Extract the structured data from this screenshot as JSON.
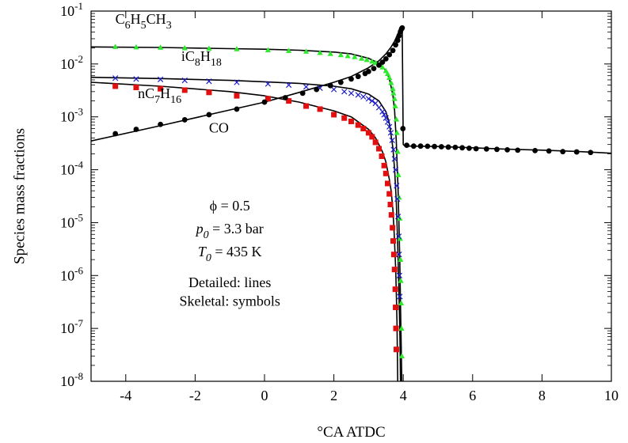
{
  "chart_data": {
    "type": "scatter",
    "xlabel": "°CA ATDC",
    "ylabel": "Species mass fractions",
    "xlim": [
      -5,
      10
    ],
    "ylim": [
      1e-08,
      0.1
    ],
    "y_scale": "log",
    "x_ticks": [
      -4,
      -2,
      0,
      2,
      4,
      6,
      8,
      10
    ],
    "x_tick_labels": [
      "-4",
      "-2",
      "0",
      "2",
      "4",
      "6",
      "8",
      "10"
    ],
    "y_ticks": [
      {
        "value": 1e-08,
        "mant": "10",
        "exp": "-8"
      },
      {
        "value": 1e-07,
        "mant": "10",
        "exp": "-7"
      },
      {
        "value": 1e-06,
        "mant": "10",
        "exp": "-6"
      },
      {
        "value": 1e-05,
        "mant": "10",
        "exp": "-5"
      },
      {
        "value": 0.0001,
        "mant": "10",
        "exp": "-4"
      },
      {
        "value": 0.001,
        "mant": "10",
        "exp": "-3"
      },
      {
        "value": 0.01,
        "mant": "10",
        "exp": "-2"
      },
      {
        "value": 0.1,
        "mant": "10",
        "exp": "-1"
      }
    ],
    "grid": false,
    "series": [
      {
        "name": "C6H5CH3",
        "label_parts": [
          {
            "t": "C"
          },
          {
            "t": "6",
            "sub": true
          },
          {
            "t": "H"
          },
          {
            "t": "5",
            "sub": true
          },
          {
            "t": "CH"
          },
          {
            "t": "3",
            "sub": true
          }
        ],
        "marker": "triangle",
        "color": "#2ee82e",
        "line_x": [
          -5,
          -3,
          -1,
          0,
          1,
          2,
          2.5,
          3,
          3.3,
          3.5,
          3.6,
          3.7,
          3.75,
          3.8,
          3.85,
          3.88,
          3.9,
          3.92,
          3.94,
          3.96
        ],
        "line_y": [
          0.021,
          0.0205,
          0.0195,
          0.019,
          0.0182,
          0.0168,
          0.0155,
          0.0128,
          0.0103,
          0.0075,
          0.0052,
          0.0026,
          0.0013,
          0.00035,
          4.5e-05,
          8e-06,
          2e-06,
          3e-07,
          5e-08,
          1e-08
        ],
        "points_x": [
          -4.3,
          -3.7,
          -3.0,
          -2.3,
          -1.6,
          -0.8,
          0.1,
          0.7,
          1.2,
          1.6,
          1.9,
          2.2,
          2.4,
          2.6,
          2.8,
          2.95,
          3.1,
          3.2,
          3.3,
          3.4,
          3.5,
          3.55,
          3.6,
          3.65,
          3.7,
          3.72,
          3.75,
          3.77,
          3.8,
          3.82,
          3.84,
          3.86,
          3.88,
          3.9,
          3.91,
          3.92,
          3.93,
          3.94,
          3.95,
          3.96
        ],
        "points_y": [
          0.0212,
          0.0208,
          0.0205,
          0.02,
          0.0196,
          0.0192,
          0.0183,
          0.0178,
          0.0172,
          0.0163,
          0.0156,
          0.0148,
          0.0142,
          0.0136,
          0.0127,
          0.012,
          0.0112,
          0.0105,
          0.0097,
          0.0087,
          0.0074,
          0.0065,
          0.0055,
          0.0044,
          0.0034,
          0.0028,
          0.0022,
          0.0016,
          0.0009,
          0.0005,
          0.00022,
          8e-05,
          3e-05,
          1.2e-05,
          5e-06,
          2e-06,
          8e-07,
          3e-07,
          1e-07,
          3e-08
        ]
      },
      {
        "name": "iC8H18",
        "label_parts": [
          {
            "t": "iC"
          },
          {
            "t": "8",
            "sub": true
          },
          {
            "t": "H"
          },
          {
            "t": "18",
            "sub": true
          }
        ],
        "marker": "x",
        "color": "#1a1acc",
        "line_x": [
          -5,
          -3,
          -1,
          0,
          1,
          2,
          2.5,
          3,
          3.3,
          3.5,
          3.6,
          3.7,
          3.75,
          3.8,
          3.83,
          3.86,
          3.88,
          3.9,
          3.91,
          3.92
        ],
        "line_y": [
          0.0056,
          0.0053,
          0.0049,
          0.0046,
          0.0043,
          0.0038,
          0.0034,
          0.0027,
          0.002,
          0.00125,
          0.00075,
          0.00026,
          0.0001,
          2.5e-05,
          6e-06,
          1.2e-06,
          4e-07,
          1e-07,
          3.5e-08,
          1e-08
        ],
        "points_x": [
          -4.3,
          -3.7,
          -3.0,
          -2.3,
          -1.6,
          -0.8,
          0.1,
          0.7,
          1.2,
          1.6,
          2.0,
          2.3,
          2.5,
          2.7,
          2.85,
          3.0,
          3.1,
          3.2,
          3.3,
          3.4,
          3.45,
          3.5,
          3.55,
          3.6,
          3.64,
          3.68,
          3.72,
          3.75,
          3.78,
          3.81,
          3.83,
          3.85,
          3.87,
          3.88,
          3.89,
          3.9
        ],
        "points_y": [
          0.0054,
          0.0052,
          0.0051,
          0.0049,
          0.0047,
          0.0045,
          0.0042,
          0.004,
          0.0037,
          0.0035,
          0.0033,
          0.003,
          0.0028,
          0.0026,
          0.0024,
          0.0022,
          0.002,
          0.0018,
          0.0015,
          0.00125,
          0.0011,
          0.00095,
          0.0008,
          0.00065,
          0.0005,
          0.00036,
          0.00024,
          0.00016,
          0.0001,
          5e-05,
          2.8e-05,
          1.3e-05,
          5.5e-06,
          2.5e-06,
          1e-06,
          4e-07
        ]
      },
      {
        "name": "nC7H16",
        "label_parts": [
          {
            "t": "nC"
          },
          {
            "t": "7",
            "sub": true
          },
          {
            "t": "H"
          },
          {
            "t": "16",
            "sub": true
          }
        ],
        "marker": "square",
        "color": "#e01010",
        "line_x": [
          -5,
          -3,
          -1,
          0,
          1,
          2,
          2.5,
          3,
          3.2,
          3.4,
          3.5,
          3.6,
          3.65,
          3.7,
          3.74,
          3.78,
          3.8,
          3.82,
          3.84
        ],
        "line_y": [
          0.0045,
          0.0038,
          0.003,
          0.0025,
          0.0019,
          0.0013,
          0.001,
          0.00058,
          0.0004,
          0.00022,
          0.00014,
          6.5e-05,
          4e-05,
          1.8e-05,
          6e-06,
          1.4e-06,
          5e-07,
          1.3e-07,
          1e-08
        ],
        "points_x": [
          -4.3,
          -3.7,
          -3.0,
          -2.3,
          -1.6,
          -0.8,
          0.1,
          0.7,
          1.2,
          1.6,
          2.0,
          2.3,
          2.5,
          2.7,
          2.85,
          3.0,
          3.1,
          3.2,
          3.3,
          3.38,
          3.45,
          3.5,
          3.55,
          3.6,
          3.63,
          3.66,
          3.69,
          3.71,
          3.73,
          3.75,
          3.77,
          3.78,
          3.79,
          3.8
        ],
        "points_y": [
          0.0038,
          0.0036,
          0.0034,
          0.0032,
          0.0029,
          0.0025,
          0.0022,
          0.002,
          0.0016,
          0.0014,
          0.0011,
          0.00095,
          0.00082,
          0.0007,
          0.0006,
          0.0005,
          0.00042,
          0.00033,
          0.00025,
          0.00018,
          0.00012,
          8.5e-05,
          5.5e-05,
          3.5e-05,
          2.2e-05,
          1.4e-05,
          8e-06,
          4.5e-06,
          2.5e-06,
          1.3e-06,
          5.5e-07,
          2.5e-07,
          1e-07,
          4e-08
        ]
      },
      {
        "name": "CO",
        "label_parts": [
          {
            "t": "CO"
          }
        ],
        "marker": "circle",
        "color": "#000000",
        "line_x": [
          -5,
          -3,
          -1,
          0,
          1,
          2,
          2.5,
          3,
          3.3,
          3.5,
          3.65,
          3.75,
          3.82,
          3.88,
          3.92,
          3.95,
          3.97,
          4.0,
          4.05,
          4.2,
          5,
          6,
          7,
          8,
          9,
          10
        ],
        "line_y": [
          0.00035,
          0.00068,
          0.00135,
          0.0019,
          0.0029,
          0.0045,
          0.0058,
          0.0085,
          0.0115,
          0.0155,
          0.021,
          0.027,
          0.034,
          0.042,
          0.047,
          0.049,
          0.045,
          0.0003,
          0.00028,
          0.00028,
          0.000275,
          0.00026,
          0.000245,
          0.000235,
          0.000222,
          0.000205
        ],
        "points_x": [
          -4.3,
          -3.7,
          -3.0,
          -2.3,
          -1.6,
          -0.8,
          0.0,
          0.6,
          1.1,
          1.5,
          1.9,
          2.2,
          2.5,
          2.7,
          2.9,
          3.0,
          3.15,
          3.3,
          3.4,
          3.5,
          3.6,
          3.7,
          3.78,
          3.84,
          3.88,
          3.92,
          3.95,
          3.97,
          3.99,
          4.1,
          4.3,
          4.5,
          4.7,
          4.9,
          5.1,
          5.3,
          5.5,
          5.7,
          5.9,
          6.1,
          6.4,
          6.7,
          7.0,
          7.3,
          7.8,
          8.2,
          8.6,
          9.0,
          9.4
        ],
        "points_y": [
          0.00048,
          0.00058,
          0.00072,
          0.00088,
          0.0011,
          0.0014,
          0.0019,
          0.0023,
          0.0028,
          0.0033,
          0.0039,
          0.0045,
          0.0052,
          0.0058,
          0.0066,
          0.0072,
          0.0082,
          0.0095,
          0.0108,
          0.0125,
          0.015,
          0.018,
          0.023,
          0.028,
          0.034,
          0.041,
          0.046,
          0.048,
          0.0006,
          0.00029,
          0.00028,
          0.00028,
          0.000278,
          0.000275,
          0.000272,
          0.000268,
          0.000265,
          0.00026,
          0.000255,
          0.00025,
          0.000247,
          0.000243,
          0.000238,
          0.000234,
          0.00023,
          0.000226,
          0.00022,
          0.000217,
          0.000212
        ]
      }
    ],
    "series_labels": [
      {
        "series": "C6H5CH3",
        "x": -4.3,
        "y": 0.058
      },
      {
        "series": "iC8H18",
        "x": -2.4,
        "y": 0.0115
      },
      {
        "series": "nC7H16",
        "x": -3.65,
        "y": 0.00225
      },
      {
        "series": "CO",
        "x": -1.6,
        "y": 0.00051
      }
    ],
    "annotations": [
      {
        "id": "phi",
        "x": -1.0,
        "y": 1.7e-05,
        "parts": [
          {
            "t": "ϕ = 0.5"
          }
        ]
      },
      {
        "id": "p0",
        "x": -1.0,
        "y": 6.3e-06,
        "parts": [
          {
            "t": "p",
            "italic": true
          },
          {
            "t": "0",
            "italic": true,
            "sub": true
          },
          {
            "t": " = 3.3 bar"
          }
        ]
      },
      {
        "id": "t0",
        "x": -1.0,
        "y": 2.3e-06,
        "parts": [
          {
            "t": "T",
            "italic": true
          },
          {
            "t": "0",
            "italic": true,
            "sub": true
          },
          {
            "t": " = 435 K"
          }
        ]
      },
      {
        "id": "detailed",
        "x": -1.0,
        "y": 6e-07,
        "parts": [
          {
            "t": "Detailed: lines"
          }
        ]
      },
      {
        "id": "skeletal",
        "x": -1.0,
        "y": 2.7e-07,
        "parts": [
          {
            "t": "Skeletal: symbols"
          }
        ]
      }
    ]
  }
}
